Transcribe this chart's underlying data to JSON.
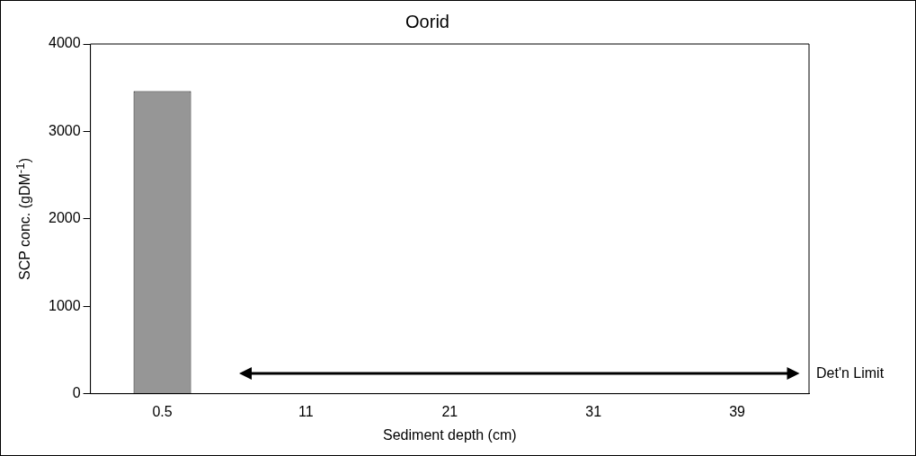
{
  "chart_data": {
    "type": "bar",
    "title": "Oorid",
    "xlabel": "Sediment depth (cm)",
    "ylabel": "SCP conc. (gDM$^{-1}$)",
    "categories": [
      "0.5",
      "11",
      "21",
      "31",
      "39"
    ],
    "series": [
      {
        "color": "#969696",
        "values": [
          3460,
          null,
          null,
          null,
          null
        ]
      }
    ],
    "ylim": [
      0,
      4000
    ],
    "yticks": [
      0,
      1000,
      2000,
      3000,
      4000
    ],
    "grid": false,
    "legend": false,
    "annotations": [
      "Det'n Limit"
    ]
  }
}
